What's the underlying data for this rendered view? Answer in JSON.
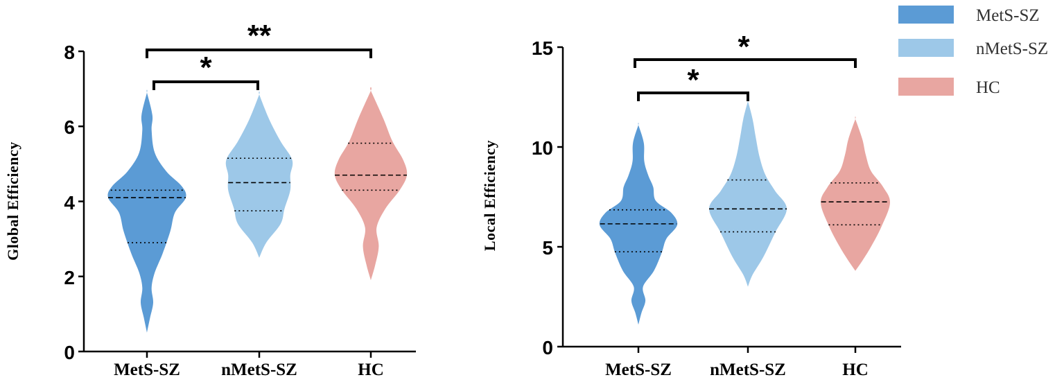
{
  "legend": [
    {
      "label": "MetS-SZ",
      "color": "#5b9bd5"
    },
    {
      "label": "nMetS-SZ",
      "color": "#9dc8e8"
    },
    {
      "label": "HC",
      "color": "#e8a6a1"
    }
  ],
  "chart_data": [
    {
      "type": "violin",
      "ylabel": "Global  Efficiency",
      "ylim": [
        0,
        8
      ],
      "yticks": [
        "0",
        "2",
        "4",
        "6",
        "8"
      ],
      "categories": [
        "MetS-SZ",
        "nMetS-SZ",
        "HC"
      ],
      "series": [
        {
          "name": "MetS-SZ",
          "min": 0.5,
          "max": 6.9,
          "q1": 2.9,
          "median": 4.1,
          "q3": 4.3
        },
        {
          "name": "nMetS-SZ",
          "min": 2.5,
          "max": 6.85,
          "q1": 3.75,
          "median": 4.5,
          "q3": 5.15
        },
        {
          "name": "HC",
          "min": 1.9,
          "max": 6.95,
          "q1": 4.3,
          "median": 4.7,
          "q3": 5.55
        }
      ],
      "significance": [
        {
          "from": "MetS-SZ",
          "to": "nMetS-SZ",
          "label": "*"
        },
        {
          "from": "MetS-SZ",
          "to": "HC",
          "label": "**"
        }
      ]
    },
    {
      "type": "violin",
      "ylabel": "Local  Efficiency",
      "ylim": [
        0,
        15
      ],
      "yticks": [
        "0",
        "5",
        "10",
        "15"
      ],
      "categories": [
        "MetS-SZ",
        "nMetS-SZ",
        "HC"
      ],
      "series": [
        {
          "name": "MetS-SZ",
          "min": 1.1,
          "max": 11.1,
          "q1": 4.75,
          "median": 6.15,
          "q3": 6.85
        },
        {
          "name": "nMetS-SZ",
          "min": 3.0,
          "max": 12.3,
          "q1": 5.75,
          "median": 6.9,
          "q3": 8.35
        },
        {
          "name": "HC",
          "min": 3.8,
          "max": 11.4,
          "q1": 6.1,
          "median": 7.25,
          "q3": 8.2
        }
      ],
      "significance": [
        {
          "from": "MetS-SZ",
          "to": "nMetS-SZ",
          "label": "*"
        },
        {
          "from": "MetS-SZ",
          "to": "HC",
          "label": "*"
        }
      ]
    }
  ]
}
